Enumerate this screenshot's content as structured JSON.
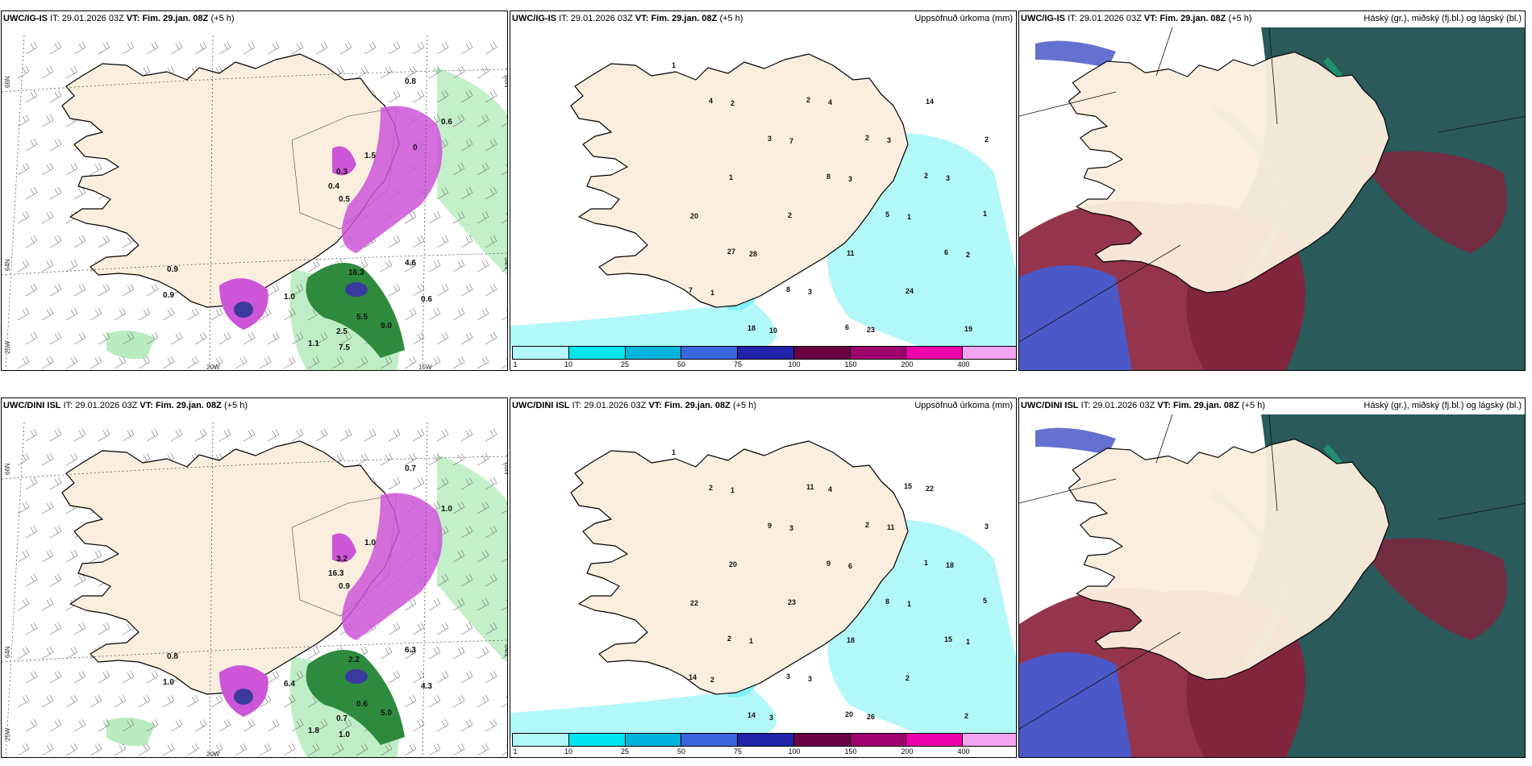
{
  "panels": [
    {
      "id": "p1",
      "model": "UWC/IG-IS",
      "it_label": "IT:",
      "it": "29.01.2026 03Z",
      "vt_label": "VT:",
      "vt": "Fim. 29.jan. 08Z",
      "lead": "(+5 h)",
      "right_title": ""
    },
    {
      "id": "p2",
      "model": "UWC/IG-IS",
      "it_label": "IT:",
      "it": "29.01.2026 03Z",
      "vt_label": "VT:",
      "vt": "Fim. 29.jan. 08Z",
      "lead": "(+5 h)",
      "right_title": "Uppsöfnuð úrkoma (mm)"
    },
    {
      "id": "p3",
      "model": "UWC/IG-IS",
      "it_label": "IT:",
      "it": "29.01.2026 03Z",
      "vt_label": "VT:",
      "vt": "Fim. 29.jan. 08Z",
      "lead": "(+5 h)",
      "right_title": "Háský (gr.), miðský (fj.bl.) og lágský (bl.)"
    },
    {
      "id": "p4",
      "model": "UWC/DINI ISL",
      "it_label": "IT:",
      "it": "29.01.2026 03Z",
      "vt_label": "VT:",
      "vt": "Fim. 29.jan. 08Z",
      "lead": "(+5 h)",
      "right_title": ""
    },
    {
      "id": "p5",
      "model": "UWC/DINI ISL",
      "it_label": "IT:",
      "it": "29.01.2026 03Z",
      "vt_label": "VT:",
      "vt": "Fim. 29.jan. 08Z",
      "lead": "(+5 h)",
      "right_title": "Uppsöfnuð úrkoma (mm)"
    },
    {
      "id": "p6",
      "model": "UWC/DINI ISL",
      "it_label": "IT:",
      "it": "29.01.2026 03Z",
      "vt_label": "VT:",
      "vt": "Fim. 29.jan. 08Z",
      "lead": "(+5 h)",
      "right_title": "Háský (gr.), miðský (fj.bl.) og lágský (bl.)"
    }
  ],
  "grid_labels": {
    "p1": {
      "lat_66": "66N",
      "lat_64": "64N",
      "lon_25": "25W",
      "lon_20": "20W",
      "lon_15": "15W",
      "lat_66_r": "66N",
      "lat_64_r": "64N"
    },
    "p4": {
      "lat_66": "66N",
      "lat_64": "64N",
      "lon_25": "25W",
      "lon_20": "20W",
      "lat_66_r": "66N",
      "lat_64_r": "64N"
    }
  },
  "precip_labels": {
    "p1": [
      "0.8",
      "0.6",
      "0.9",
      "0.9",
      "0.6",
      "1.0",
      "4.6",
      "2.5",
      "5.5",
      "9.0",
      "7.5",
      "1.1",
      "16.3",
      "0.3",
      "0.4",
      "0.5",
      "1.5",
      "0"
    ],
    "p4": [
      "0.7",
      "1.0",
      "0.8",
      "1.0",
      "4.3",
      "6.4",
      "6.3",
      "0.7",
      "0.6",
      "5.0",
      "1.0",
      "1.8",
      "2.2",
      "3.2",
      "16.3",
      "0.9",
      "1.0"
    ]
  },
  "accum_labels": {
    "p2": [
      "1",
      "2",
      "7",
      "3",
      "1",
      "2",
      "1",
      "10",
      "4",
      "3",
      "3",
      "20",
      "28",
      "3",
      "23",
      "14",
      "2",
      "1",
      "2",
      "11",
      "24",
      "19",
      "4",
      "3",
      "8",
      "5",
      "6",
      "7",
      "18",
      "2",
      "2",
      "2",
      "1",
      "27",
      "8",
      "6"
    ],
    "p5": [
      "1",
      "1",
      "3",
      "6",
      "1",
      "1",
      "2",
      "3",
      "4",
      "11",
      "18",
      "22",
      "1",
      "3",
      "26",
      "22",
      "3",
      "20",
      "23",
      "18",
      "2",
      "2",
      "2",
      "9",
      "9",
      "8",
      "15",
      "14",
      "14",
      "11",
      "2",
      "1",
      "5",
      "2",
      "3",
      "20",
      "15"
    ]
  },
  "colorbar": {
    "labels": [
      "1",
      "10",
      "25",
      "50",
      "75",
      "100",
      "150",
      "200",
      "400"
    ],
    "colors": [
      "#b3f8f8",
      "#00e5ee",
      "#00b3dd",
      "#3a66dd",
      "#2222aa",
      "#6a0044",
      "#a0006e",
      "#ee00aa",
      "#f3a4f0"
    ]
  },
  "colors": {
    "land": "#fbeede",
    "precip_green": "#2e8b3e",
    "precip_light_green": "#b8ecc0",
    "precip_purple": "#cc55d8",
    "precip_blue": "#3a3a9e",
    "accum_cyan": "#b3f8f8",
    "cloud_dark": "#2a5a5a",
    "cloud_teal": "#1aa874",
    "cloud_red": "#8a1f3a",
    "cloud_blue": "#4a58c8"
  }
}
